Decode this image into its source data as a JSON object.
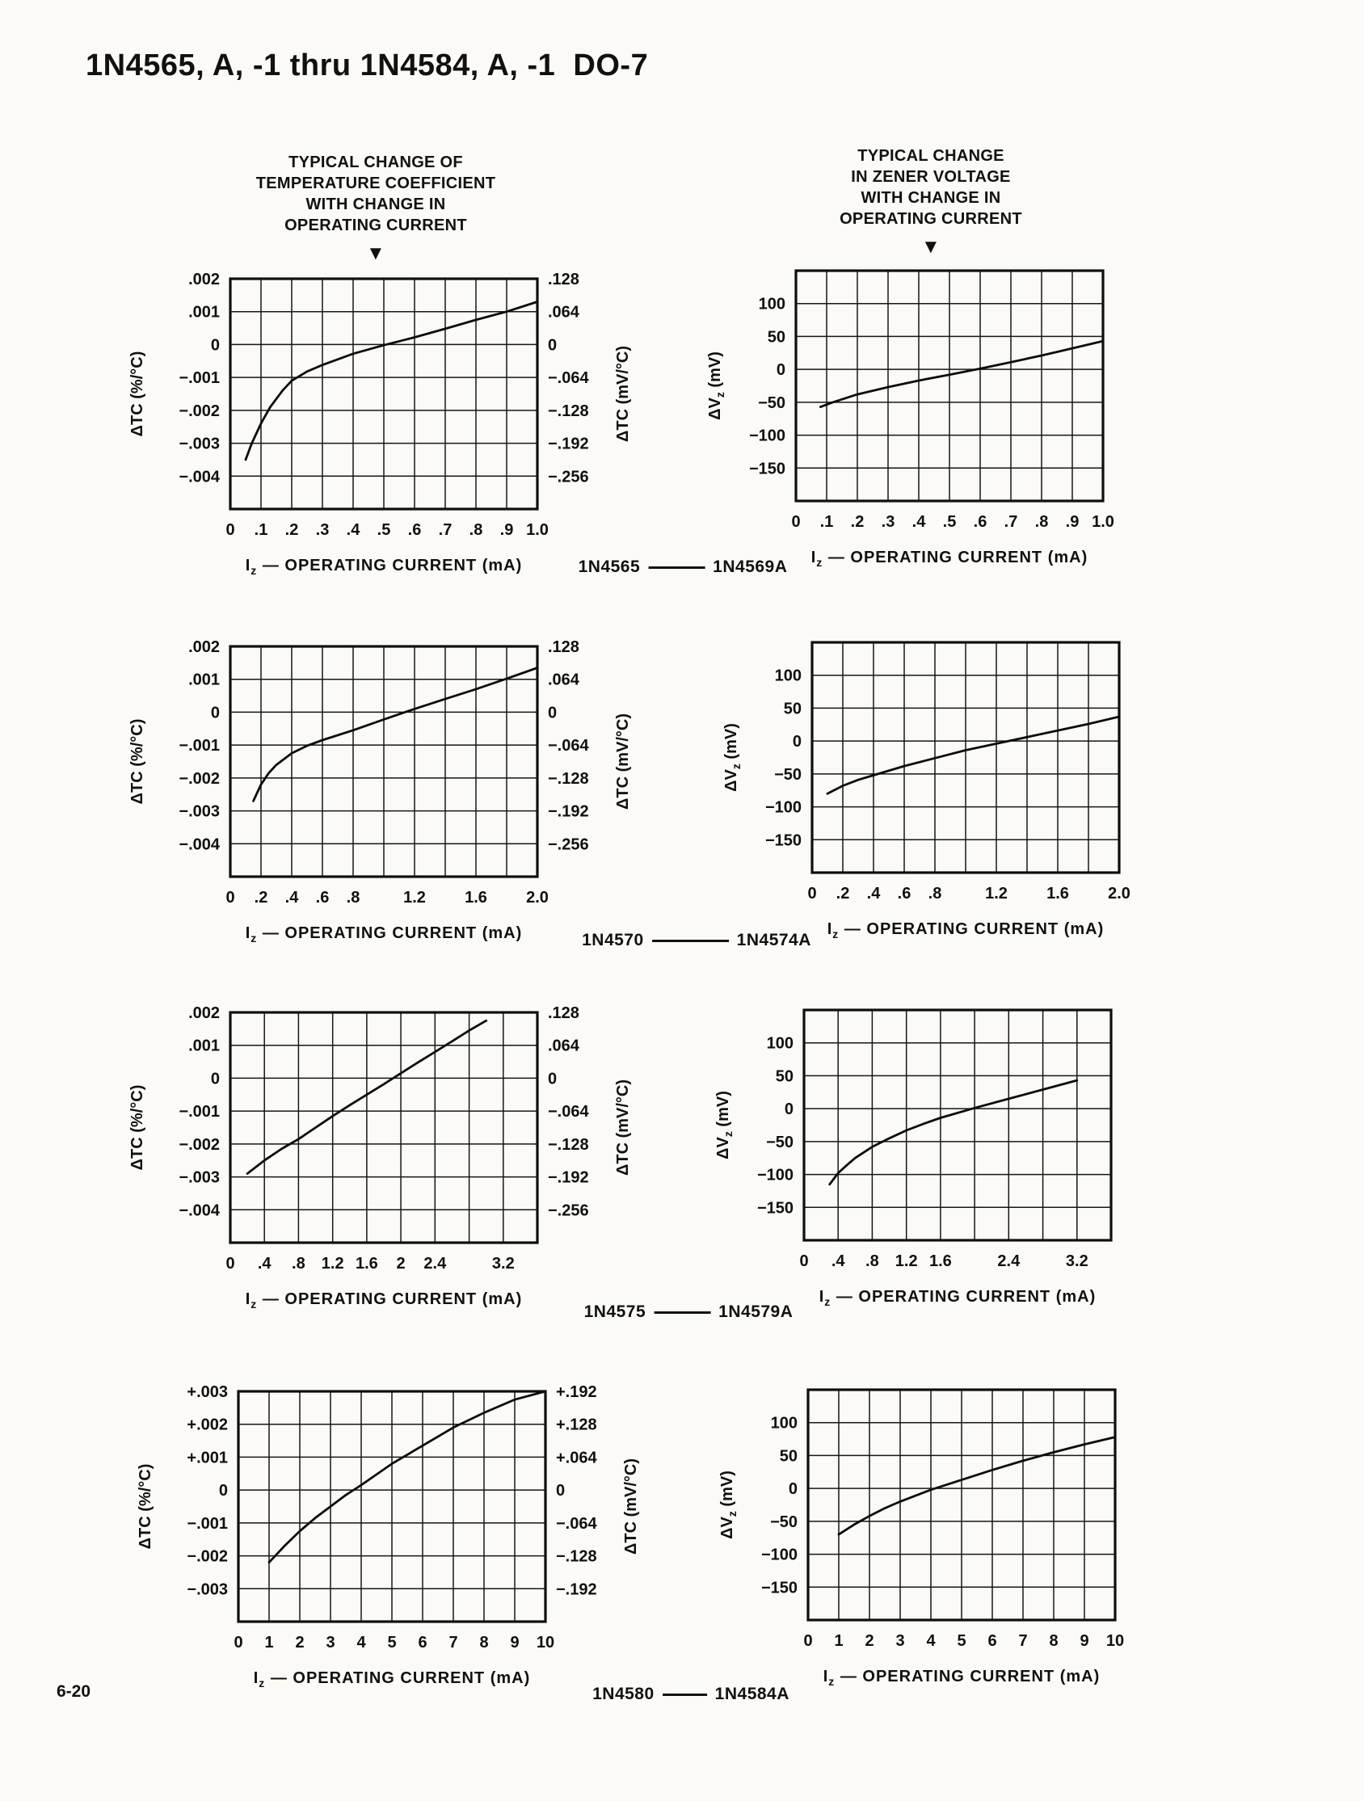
{
  "page": {
    "title": "1N4565, A, -1 thru 1N4584, A, -1  DO-7",
    "page_number": "6-20"
  },
  "headers": {
    "left": [
      "TYPICAL CHANGE OF",
      "TEMPERATURE COEFFICIENT",
      "WITH CHANGE IN",
      "OPERATING CURRENT"
    ],
    "right": [
      "TYPICAL CHANGE",
      "IN ZENER VOLTAGE",
      "WITH CHANGE IN",
      "OPERATING CURRENT"
    ],
    "marker": "▼"
  },
  "captions": [
    {
      "left": "1N4565",
      "right": "1N4569A"
    },
    {
      "left": "1N4570",
      "right": "1N4574A"
    },
    {
      "left": "1N4575",
      "right": "1N4579A"
    },
    {
      "left": "1N4580",
      "right": "1N4584A"
    }
  ],
  "chart_data": [
    {
      "kind": "tc",
      "type": "line",
      "group": "1N4565 - 1N4569A",
      "quantity": "temperature-coefficient-change",
      "xlabel": [
        {
          "t": "I"
        },
        {
          "t": "z",
          "sub": true
        },
        {
          "t": " — OPERATING CURRENT (mA)"
        }
      ],
      "ylabel_left": [
        {
          "t": "ΔTC (%/°C)"
        }
      ],
      "ylabel_right": [
        {
          "t": "ΔTC (mV/°C)"
        }
      ],
      "x_min": 0,
      "x_max": 1,
      "x_grid": [
        0,
        0.1,
        0.2,
        0.3,
        0.4,
        0.5,
        0.6,
        0.7,
        0.8,
        0.9,
        1
      ],
      "x_ticks": {
        "v": [
          0,
          0.1,
          0.2,
          0.3,
          0.4,
          0.5,
          0.6,
          0.7,
          0.8,
          0.9,
          1
        ],
        "l": [
          "0",
          ".1",
          ".2",
          ".3",
          ".4",
          ".5",
          ".6",
          ".7",
          ".8",
          ".9",
          "1.0"
        ]
      },
      "y_min": -0.005,
      "y_max": 0.002,
      "y_grid": [
        0.002,
        0.001,
        0,
        -0.001,
        -0.002,
        -0.003,
        -0.004,
        -0.005
      ],
      "y_ticks_left": {
        "v": [
          0.002,
          0.001,
          0,
          -0.001,
          -0.002,
          -0.003,
          -0.004
        ],
        "l": [
          ".002",
          ".001",
          "0",
          "−.001",
          "−.002",
          "−.003",
          "−.004"
        ]
      },
      "y_ticks_right": {
        "v": [
          0.002,
          0.001,
          0,
          -0.001,
          -0.002,
          -0.003,
          -0.004
        ],
        "l": [
          ".128",
          ".064",
          "0",
          "−.064",
          "−.128",
          "−.192",
          "−.256"
        ]
      },
      "curve": [
        [
          0.05,
          -0.0035
        ],
        [
          0.07,
          -0.003
        ],
        [
          0.1,
          -0.0024
        ],
        [
          0.13,
          -0.0019
        ],
        [
          0.17,
          -0.0014
        ],
        [
          0.2,
          -0.0011
        ],
        [
          0.25,
          -0.00082
        ],
        [
          0.3,
          -0.00062
        ],
        [
          0.4,
          -0.00028
        ],
        [
          0.5,
          -2e-05
        ],
        [
          0.6,
          0.00022
        ],
        [
          0.7,
          0.00048
        ],
        [
          0.8,
          0.00075
        ],
        [
          0.9,
          0.001
        ],
        [
          1,
          0.0013
        ]
      ]
    },
    {
      "kind": "vz",
      "type": "line",
      "group": "1N4565 - 1N4569A",
      "quantity": "zener-voltage-change",
      "xlabel": [
        {
          "t": "I"
        },
        {
          "t": "z",
          "sub": true
        },
        {
          "t": " — OPERATING CURRENT (mA)"
        }
      ],
      "ylabel_left": [
        {
          "t": "ΔV"
        },
        {
          "t": "z",
          "sub": true
        },
        {
          "t": " (mV)"
        }
      ],
      "x_min": 0,
      "x_max": 1,
      "x_grid": [
        0,
        0.1,
        0.2,
        0.3,
        0.4,
        0.5,
        0.6,
        0.7,
        0.8,
        0.9,
        1
      ],
      "x_ticks": {
        "v": [
          0,
          0.1,
          0.2,
          0.3,
          0.4,
          0.5,
          0.6,
          0.7,
          0.8,
          0.9,
          1
        ],
        "l": [
          "0",
          ".1",
          ".2",
          ".3",
          ".4",
          ".5",
          ".6",
          ".7",
          ".8",
          ".9",
          "1.0"
        ]
      },
      "y_min": -200,
      "y_max": 150,
      "y_grid": [
        150,
        100,
        50,
        0,
        -50,
        -100,
        -150,
        -200
      ],
      "y_ticks_left": {
        "v": [
          100,
          50,
          0,
          -50,
          -100,
          -150
        ],
        "l": [
          "100",
          "50",
          "0",
          "−50",
          "−100",
          "−150"
        ]
      },
      "curve": [
        [
          0.08,
          -57
        ],
        [
          0.12,
          -50
        ],
        [
          0.2,
          -38
        ],
        [
          0.3,
          -27
        ],
        [
          0.4,
          -17
        ],
        [
          0.5,
          -8
        ],
        [
          0.6,
          1
        ],
        [
          0.7,
          11
        ],
        [
          0.8,
          21
        ],
        [
          0.9,
          32
        ],
        [
          1,
          43
        ]
      ]
    },
    {
      "kind": "tc",
      "type": "line",
      "group": "1N4570 - 1N4574A",
      "quantity": "temperature-coefficient-change",
      "xlabel": [
        {
          "t": "I"
        },
        {
          "t": "z",
          "sub": true
        },
        {
          "t": " — OPERATING CURRENT (mA)"
        }
      ],
      "ylabel_left": [
        {
          "t": "ΔTC (%/°C)"
        }
      ],
      "ylabel_right": [
        {
          "t": "ΔTC (mV/°C)"
        }
      ],
      "x_min": 0,
      "x_max": 2,
      "x_grid": [
        0,
        0.2,
        0.4,
        0.6,
        0.8,
        1,
        1.2,
        1.4,
        1.6,
        1.8,
        2
      ],
      "x_ticks": {
        "v": [
          0,
          0.2,
          0.4,
          0.6,
          0.8,
          1.2,
          1.6,
          2
        ],
        "l": [
          "0",
          ".2",
          ".4",
          ".6",
          ".8",
          "1.2",
          "1.6",
          "2.0"
        ]
      },
      "y_min": -0.005,
      "y_max": 0.002,
      "y_grid": [
        0.002,
        0.001,
        0,
        -0.001,
        -0.002,
        -0.003,
        -0.004,
        -0.005
      ],
      "y_ticks_left": {
        "v": [
          0.002,
          0.001,
          0,
          -0.001,
          -0.002,
          -0.003,
          -0.004
        ],
        "l": [
          ".002",
          ".001",
          "0",
          "−.001",
          "−.002",
          "−.003",
          "−.004"
        ]
      },
      "y_ticks_right": {
        "v": [
          0.002,
          0.001,
          0,
          -0.001,
          -0.002,
          -0.003,
          -0.004
        ],
        "l": [
          ".128",
          ".064",
          "0",
          "−.064",
          "−.128",
          "−.192",
          "−.256"
        ]
      },
      "curve": [
        [
          0.15,
          -0.0027
        ],
        [
          0.2,
          -0.0022
        ],
        [
          0.25,
          -0.00185
        ],
        [
          0.3,
          -0.0016
        ],
        [
          0.4,
          -0.00125
        ],
        [
          0.5,
          -0.00102
        ],
        [
          0.6,
          -0.00085
        ],
        [
          0.8,
          -0.00055
        ],
        [
          1,
          -0.00022
        ],
        [
          1.2,
          0.0001
        ],
        [
          1.4,
          0.0004
        ],
        [
          1.6,
          0.0007
        ],
        [
          1.8,
          0.00102
        ],
        [
          2,
          0.00135
        ]
      ]
    },
    {
      "kind": "vz",
      "type": "line",
      "group": "1N4570 - 1N4574A",
      "quantity": "zener-voltage-change",
      "xlabel": [
        {
          "t": "I"
        },
        {
          "t": "z",
          "sub": true
        },
        {
          "t": " — OPERATING CURRENT (mA)"
        }
      ],
      "ylabel_left": [
        {
          "t": "ΔV"
        },
        {
          "t": "z",
          "sub": true
        },
        {
          "t": " (mV)"
        }
      ],
      "x_min": 0,
      "x_max": 2,
      "x_grid": [
        0,
        0.2,
        0.4,
        0.6,
        0.8,
        1,
        1.2,
        1.4,
        1.6,
        1.8,
        2
      ],
      "x_ticks": {
        "v": [
          0,
          0.2,
          0.4,
          0.6,
          0.8,
          1.2,
          1.6,
          2
        ],
        "l": [
          "0",
          ".2",
          ".4",
          ".6",
          ".8",
          "1.2",
          "1.6",
          "2.0"
        ]
      },
      "y_min": -200,
      "y_max": 150,
      "y_grid": [
        150,
        100,
        50,
        0,
        -50,
        -100,
        -150,
        -200
      ],
      "y_ticks_left": {
        "v": [
          100,
          50,
          0,
          -50,
          -100,
          -150
        ],
        "l": [
          "100",
          "50",
          "0",
          "−50",
          "−100",
          "−150"
        ]
      },
      "curve": [
        [
          0.1,
          -80
        ],
        [
          0.2,
          -68
        ],
        [
          0.3,
          -59
        ],
        [
          0.4,
          -52
        ],
        [
          0.6,
          -38
        ],
        [
          0.8,
          -26
        ],
        [
          1,
          -14
        ],
        [
          1.2,
          -4
        ],
        [
          1.4,
          6
        ],
        [
          1.6,
          16
        ],
        [
          1.8,
          26
        ],
        [
          2,
          37
        ]
      ]
    },
    {
      "kind": "tc",
      "type": "line",
      "group": "1N4575 - 1N4579A",
      "quantity": "temperature-coefficient-change",
      "xlabel": [
        {
          "t": "I"
        },
        {
          "t": "z",
          "sub": true
        },
        {
          "t": " — OPERATING CURRENT (mA)"
        }
      ],
      "ylabel_left": [
        {
          "t": "ΔTC (%/°C)"
        }
      ],
      "ylabel_right": [
        {
          "t": "ΔTC (mV/°C)"
        }
      ],
      "x_min": 0,
      "x_max": 3.6,
      "x_grid": [
        0,
        0.4,
        0.8,
        1.2,
        1.6,
        2,
        2.4,
        2.8,
        3.2,
        3.6
      ],
      "x_ticks": {
        "v": [
          0,
          0.4,
          0.8,
          1.2,
          1.6,
          2,
          2.4,
          3.2
        ],
        "l": [
          "0",
          ".4",
          ".8",
          "1.2",
          "1.6",
          "2",
          "2.4",
          "3.2"
        ]
      },
      "y_min": -0.005,
      "y_max": 0.002,
      "y_grid": [
        0.002,
        0.001,
        0,
        -0.001,
        -0.002,
        -0.003,
        -0.004,
        -0.005
      ],
      "y_ticks_left": {
        "v": [
          0.002,
          0.001,
          0,
          -0.001,
          -0.002,
          -0.003,
          -0.004
        ],
        "l": [
          ".002",
          ".001",
          "0",
          "−.001",
          "−.002",
          "−.003",
          "−.004"
        ]
      },
      "y_ticks_right": {
        "v": [
          0.002,
          0.001,
          0,
          -0.001,
          -0.002,
          -0.003,
          -0.004
        ],
        "l": [
          ".128",
          ".064",
          "0",
          "−.064",
          "−.128",
          "−.192",
          "−.256"
        ]
      },
      "curve": [
        [
          0.2,
          -0.0029
        ],
        [
          0.4,
          -0.0025
        ],
        [
          0.6,
          -0.00215
        ],
        [
          0.8,
          -0.00185
        ],
        [
          1,
          -0.0015
        ],
        [
          1.2,
          -0.00115
        ],
        [
          1.4,
          -0.00082
        ],
        [
          1.6,
          -0.0005
        ],
        [
          1.8,
          -0.00018
        ],
        [
          2,
          0.00015
        ],
        [
          2.2,
          0.00048
        ],
        [
          2.4,
          0.0008
        ],
        [
          2.6,
          0.00112
        ],
        [
          2.8,
          0.00145
        ],
        [
          3,
          0.00175
        ]
      ]
    },
    {
      "kind": "vz",
      "type": "line",
      "group": "1N4575 - 1N4579A",
      "quantity": "zener-voltage-change",
      "xlabel": [
        {
          "t": "I"
        },
        {
          "t": "z",
          "sub": true
        },
        {
          "t": " — OPERATING CURRENT (mA)"
        }
      ],
      "ylabel_left": [
        {
          "t": "ΔV"
        },
        {
          "t": "z",
          "sub": true
        },
        {
          "t": " (mV)"
        }
      ],
      "x_min": 0,
      "x_max": 3.6,
      "x_grid": [
        0,
        0.4,
        0.8,
        1.2,
        1.6,
        2,
        2.4,
        2.8,
        3.2,
        3.6
      ],
      "x_ticks": {
        "v": [
          0,
          0.4,
          0.8,
          1.2,
          1.6,
          2.4,
          3.2
        ],
        "l": [
          "0",
          ".4",
          ".8",
          "1.2",
          "1.6",
          "2.4",
          "3.2"
        ]
      },
      "y_min": -200,
      "y_max": 150,
      "y_grid": [
        150,
        100,
        50,
        0,
        -50,
        -100,
        -150,
        -200
      ],
      "y_ticks_left": {
        "v": [
          100,
          50,
          0,
          -50,
          -100,
          -150
        ],
        "l": [
          "100",
          "50",
          "0",
          "−50",
          "−100",
          "−150"
        ]
      },
      "curve": [
        [
          0.3,
          -115
        ],
        [
          0.4,
          -98
        ],
        [
          0.5,
          -86
        ],
        [
          0.6,
          -75
        ],
        [
          0.8,
          -58
        ],
        [
          1,
          -45
        ],
        [
          1.2,
          -33
        ],
        [
          1.4,
          -23
        ],
        [
          1.6,
          -14
        ],
        [
          2,
          1
        ],
        [
          2.4,
          15
        ],
        [
          2.8,
          29
        ],
        [
          3.2,
          43
        ]
      ]
    },
    {
      "kind": "tc",
      "type": "line",
      "group": "1N4580 - 1N4584A",
      "quantity": "temperature-coefficient-change",
      "xlabel": [
        {
          "t": "I"
        },
        {
          "t": "z",
          "sub": true
        },
        {
          "t": " — OPERATING CURRENT (mA)"
        }
      ],
      "ylabel_left": [
        {
          "t": "ΔTC (%/°C)"
        }
      ],
      "ylabel_right": [
        {
          "t": "ΔTC (mV/°C)"
        }
      ],
      "x_min": 0,
      "x_max": 10,
      "x_grid": [
        0,
        1,
        2,
        3,
        4,
        5,
        6,
        7,
        8,
        9,
        10
      ],
      "x_ticks": {
        "v": [
          0,
          1,
          2,
          3,
          4,
          5,
          6,
          7,
          8,
          9,
          10
        ],
        "l": [
          "0",
          "1",
          "2",
          "3",
          "4",
          "5",
          "6",
          "7",
          "8",
          "9",
          "10"
        ]
      },
      "y_min": -0.004,
      "y_max": 0.003,
      "y_grid": [
        0.003,
        0.002,
        0.001,
        0,
        -0.001,
        -0.002,
        -0.003,
        -0.004
      ],
      "y_ticks_left": {
        "v": [
          0.003,
          0.002,
          0.001,
          0,
          -0.001,
          -0.002,
          -0.003
        ],
        "l": [
          "+.003",
          "+.002",
          "+.001",
          "0",
          "−.001",
          "−.002",
          "−.003"
        ]
      },
      "y_ticks_right": {
        "v": [
          0.003,
          0.002,
          0.001,
          0,
          -0.001,
          -0.002,
          -0.003
        ],
        "l": [
          "+.192",
          "+.128",
          "+.064",
          "0",
          "−.064",
          "−.128",
          "−.192"
        ]
      },
      "curve": [
        [
          1,
          -0.0022
        ],
        [
          1.5,
          -0.0017
        ],
        [
          2,
          -0.00125
        ],
        [
          2.5,
          -0.00085
        ],
        [
          3,
          -0.0005
        ],
        [
          3.5,
          -0.00015
        ],
        [
          4,
          0.00015
        ],
        [
          5,
          0.0008
        ],
        [
          6,
          0.00135
        ],
        [
          7,
          0.0019
        ],
        [
          8,
          0.00235
        ],
        [
          9,
          0.00275
        ],
        [
          10,
          0.003
        ]
      ]
    },
    {
      "kind": "vz",
      "type": "line",
      "group": "1N4580 - 1N4584A",
      "quantity": "zener-voltage-change",
      "xlabel": [
        {
          "t": "I"
        },
        {
          "t": "z",
          "sub": true
        },
        {
          "t": " — OPERATING CURRENT (mA)"
        }
      ],
      "ylabel_left": [
        {
          "t": "ΔV"
        },
        {
          "t": "z",
          "sub": true
        },
        {
          "t": " (mV)"
        }
      ],
      "x_min": 0,
      "x_max": 10,
      "x_grid": [
        0,
        1,
        2,
        3,
        4,
        5,
        6,
        7,
        8,
        9,
        10
      ],
      "x_ticks": {
        "v": [
          0,
          1,
          2,
          3,
          4,
          5,
          6,
          7,
          8,
          9,
          10
        ],
        "l": [
          "0",
          "1",
          "2",
          "3",
          "4",
          "5",
          "6",
          "7",
          "8",
          "9",
          "10"
        ]
      },
      "y_min": -200,
      "y_max": 150,
      "y_grid": [
        150,
        100,
        50,
        0,
        -50,
        -100,
        -150,
        -200
      ],
      "y_ticks_left": {
        "v": [
          100,
          50,
          0,
          -50,
          -100,
          -150
        ],
        "l": [
          "100",
          "50",
          "0",
          "−50",
          "−100",
          "−150"
        ]
      },
      "curve": [
        [
          1,
          -70
        ],
        [
          1.5,
          -55
        ],
        [
          2,
          -42
        ],
        [
          2.5,
          -30
        ],
        [
          3,
          -20
        ],
        [
          4,
          -2
        ],
        [
          5,
          13
        ],
        [
          6,
          28
        ],
        [
          7,
          42
        ],
        [
          8,
          55
        ],
        [
          9,
          67
        ],
        [
          10,
          78
        ]
      ]
    }
  ]
}
